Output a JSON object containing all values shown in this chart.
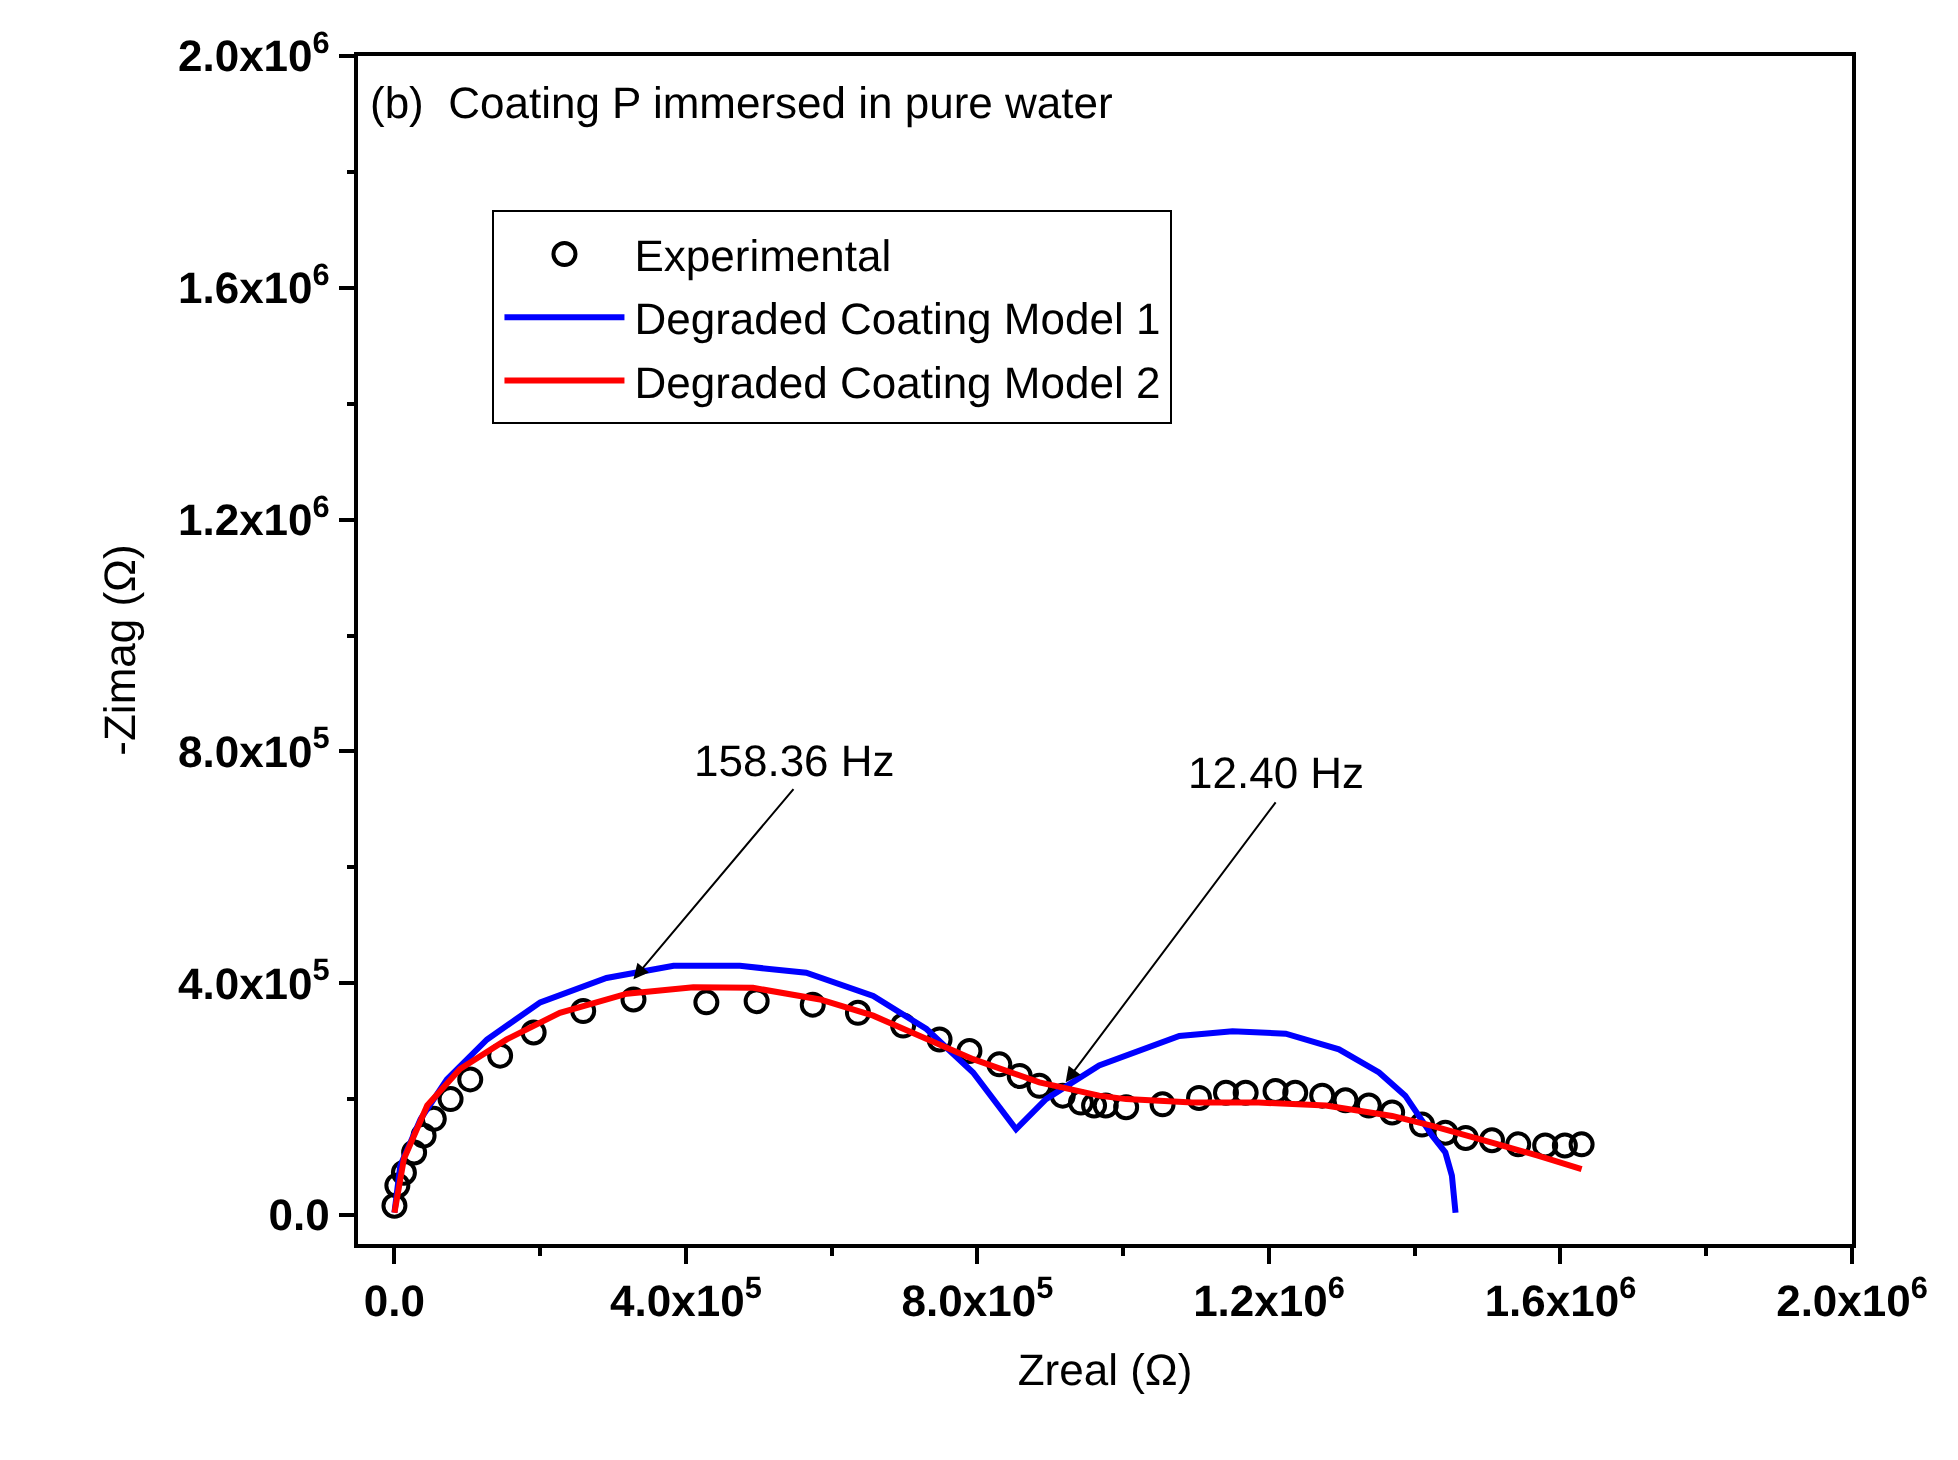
{
  "chart_data": {
    "type": "scatter",
    "xlabel": "Zreal (Ω)",
    "ylabel": "-Zimag (Ω)",
    "xlim": [
      -50000,
      2000000
    ],
    "ylim": [
      -50000,
      2000000
    ],
    "xticks": [
      {
        "value": 0,
        "label": "0.0"
      },
      {
        "value": 400000,
        "label": "4.0x10$^{5}$"
      },
      {
        "value": 800000,
        "label": "8.0x10$^{5}$"
      },
      {
        "value": 1200000,
        "label": "1.2x10$^{6}$"
      },
      {
        "value": 1600000,
        "label": "1.6x10$^{6}$"
      },
      {
        "value": 2000000,
        "label": "2.0x10$^{6}$"
      }
    ],
    "yticks": [
      {
        "value": 0,
        "label": "0.0"
      },
      {
        "value": 400000,
        "label": "4.0x10$^{5}$"
      },
      {
        "value": 800000,
        "label": "8.0x10$^{5}$"
      },
      {
        "value": 1200000,
        "label": "1.2x10$^{6}$"
      },
      {
        "value": 1600000,
        "label": "1.6x10$^{6}$"
      },
      {
        "value": 2000000,
        "label": "2.0x10$^{6}$"
      }
    ],
    "legend": "top left",
    "annotations": [
      "(b)  Coating P immersed in pure water",
      {
        "text": "158.36 Hz",
        "x": 328000,
        "y": 407000
      },
      {
        "text": "12.40 Hz",
        "x": 921000,
        "y": 229000
      }
    ],
    "series": [
      {
        "name": "Experimental",
        "marker": "circle",
        "color": "#000000",
        "x": [
          0,
          4000,
          13000,
          27000,
          40000,
          54000,
          77000,
          104000,
          145000,
          191000,
          259000,
          328000,
          428000,
          497000,
          574000,
          636000,
          698000,
          748000,
          789000,
          830000,
          858000,
          885000,
          917000,
          942000,
          960000,
          976000,
          1004000,
          1054000,
          1104000,
          1141000,
          1168000,
          1209000,
          1236000,
          1273000,
          1305000,
          1337000,
          1369000,
          1410000,
          1442000,
          1470000,
          1506000,
          1542000,
          1579000,
          1606000,
          1629000
        ],
        "values": [
          16000,
          51000,
          73000,
          108000,
          137000,
          166000,
          200000,
          234000,
          275000,
          315000,
          352000,
          372000,
          367000,
          369000,
          363000,
          349000,
          327000,
          303000,
          283000,
          260000,
          240000,
          223000,
          206000,
          194000,
          189000,
          189000,
          186000,
          191000,
          202000,
          211000,
          211000,
          214000,
          211000,
          206000,
          198000,
          189000,
          177000,
          156000,
          142000,
          133000,
          129000,
          122000,
          120000,
          120000,
          122000
        ]
      },
      {
        "name": "Degraded Coating Model 1",
        "type": "line",
        "color": "#0000ff",
        "x": [
          0,
          8000,
          36000,
          72000,
          127000,
          200000,
          291000,
          383000,
          474000,
          565000,
          657000,
          730000,
          794000,
          853000,
          894000,
          967000,
          1077000,
          1150000,
          1223000,
          1296000,
          1351000,
          1387000,
          1424000,
          1442000,
          1451000,
          1456000
        ],
        "values": [
          4000,
          85000,
          166000,
          234000,
          303000,
          367000,
          409000,
          430000,
          430000,
          418000,
          378000,
          321000,
          246000,
          148000,
          200000,
          258000,
          309000,
          317000,
          313000,
          286000,
          246000,
          206000,
          137000,
          108000,
          68000,
          4000
        ]
      },
      {
        "name": "Degraded Coating Model 2",
        "type": "line",
        "color": "#ff0000",
        "x": [
          0,
          13000,
          45000,
          90000,
          154000,
          227000,
          319000,
          410000,
          492000,
          584000,
          657000,
          721000,
          794000,
          885000,
          967000,
          1004000,
          1095000,
          1186000,
          1278000,
          1369000,
          1424000,
          1506000,
          1570000,
          1629000
        ],
        "values": [
          4000,
          97000,
          189000,
          252000,
          303000,
          349000,
          382000,
          393000,
          392000,
          372000,
          344000,
          309000,
          269000,
          229000,
          206000,
          200000,
          194000,
          194000,
          189000,
          171000,
          154000,
          125000,
          102000,
          79000
        ]
      }
    ]
  }
}
